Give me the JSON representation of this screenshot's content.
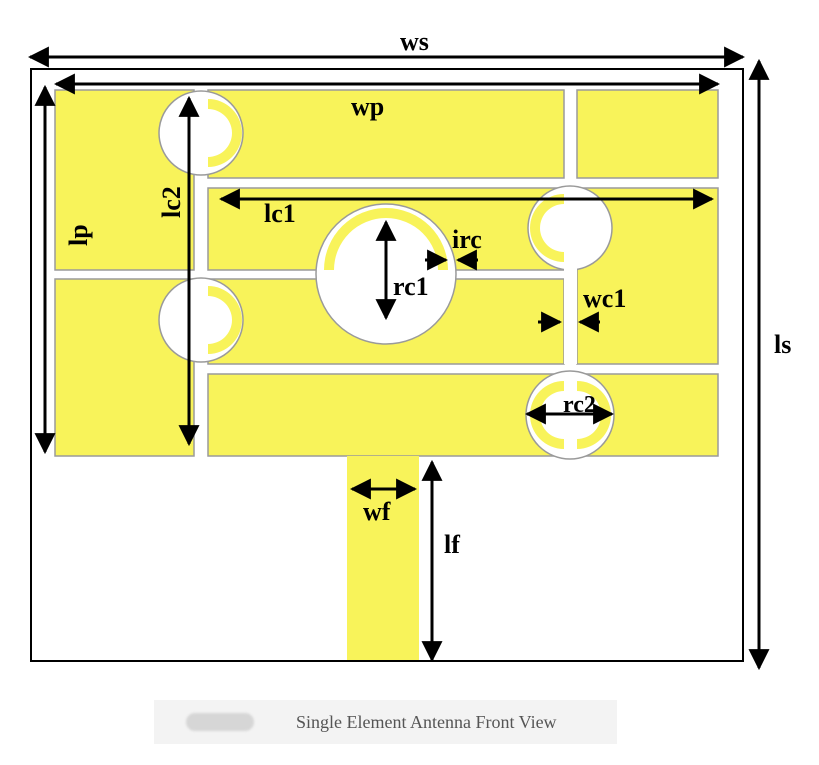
{
  "figure": {
    "caption": "Single Element Antenna Front View",
    "labels": {
      "ws": "ws",
      "wp": "wp",
      "lp": "lp",
      "lc2": "lc2",
      "lc1": "lc1",
      "irc": "irc",
      "rc1": "rc1",
      "wc1": "wc1",
      "ls": "ls",
      "rc2": "rc2",
      "wf": "wf",
      "lf": "lf"
    },
    "colors": {
      "patch": "#f8f35a",
      "gap": "#ffffff",
      "outline": "#000000"
    }
  }
}
